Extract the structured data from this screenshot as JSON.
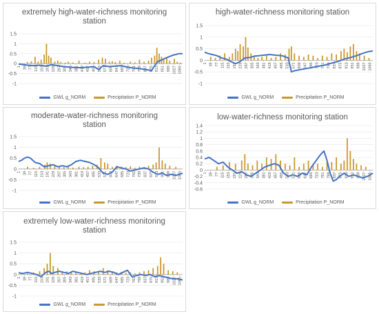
{
  "legend": {
    "gwl": "GWL g_NORM",
    "precip": "Precipitation P_NORM"
  },
  "colors": {
    "gwl": "#4472c4",
    "precip": "#c9982b",
    "grid": "#e6e6e6",
    "axis": "#a6a6a6",
    "text": "#595959"
  },
  "x_tick_labels": [
    "1",
    "39",
    "77",
    "115",
    "153",
    "191",
    "229",
    "267",
    "305",
    "343",
    "381",
    "419",
    "457",
    "495",
    "533",
    "571",
    "609",
    "647",
    "685",
    "723",
    "761",
    "799",
    "837",
    "875",
    "913",
    "951",
    "989",
    "1027",
    "1065"
  ],
  "chart_data": [
    {
      "id": "extremely-high",
      "type": "line+bar",
      "title": "extremely high-water-richness monitoring station",
      "x_range": [
        1,
        1085
      ],
      "ylim": [
        -1,
        1.5
      ],
      "y_ticks": [
        "1.5",
        "1",
        "0.5",
        "0",
        "-0.5",
        "-1"
      ],
      "y_tick_values": [
        1.5,
        1,
        0.5,
        0,
        -0.5,
        -1
      ],
      "grid": true,
      "legend_position": "bottom",
      "series": [
        {
          "name": "GWL g_NORM",
          "kind": "line",
          "x": [
            1,
            30,
            60,
            100,
            140,
            180,
            220,
            260,
            300,
            340,
            380,
            420,
            460,
            500,
            530,
            560,
            600,
            640,
            680,
            720,
            760,
            800,
            840,
            880,
            900,
            920,
            950,
            980,
            1020,
            1060,
            1085
          ],
          "y": [
            -0.02,
            -0.05,
            -0.08,
            -0.1,
            -0.08,
            -0.12,
            -0.06,
            -0.1,
            -0.15,
            -0.18,
            -0.2,
            -0.2,
            -0.18,
            -0.15,
            -0.3,
            -0.1,
            -0.15,
            -0.12,
            -0.1,
            -0.18,
            -0.22,
            -0.25,
            -0.3,
            -0.35,
            -0.1,
            0.1,
            0.2,
            0.3,
            0.42,
            0.5,
            0.5
          ]
        },
        {
          "name": "Precipitation P_NORM",
          "kind": "bar",
          "x": [
            60,
            85,
            110,
            130,
            150,
            170,
            185,
            200,
            215,
            240,
            260,
            280,
            310,
            330,
            360,
            400,
            440,
            470,
            500,
            530,
            555,
            575,
            600,
            620,
            640,
            670,
            700,
            740,
            770,
            800,
            830,
            860,
            880,
            900,
            915,
            930,
            945,
            960,
            980,
            1000,
            1030,
            1050,
            1070
          ],
          "y": [
            0.08,
            0.12,
            0.35,
            0.1,
            0.2,
            0.45,
            1.0,
            0.4,
            0.3,
            0.1,
            0.15,
            0.08,
            0.05,
            0.1,
            0.06,
            0.15,
            0.05,
            0.1,
            0.08,
            0.2,
            0.3,
            0.25,
            0.1,
            0.12,
            0.08,
            0.15,
            0.05,
            0.1,
            0.06,
            0.2,
            0.1,
            0.15,
            0.3,
            0.4,
            0.8,
            0.5,
            0.35,
            0.2,
            0.3,
            0.15,
            0.25,
            0.1,
            0.05
          ]
        }
      ]
    },
    {
      "id": "high",
      "type": "line+bar",
      "title": "high-water-richness monitoring station",
      "x_range": [
        1,
        1085
      ],
      "ylim": [
        -1,
        1.5
      ],
      "y_ticks": [
        "1.5",
        "1",
        "0.5",
        "0",
        "-0.5",
        "-1"
      ],
      "y_tick_values": [
        1.5,
        1,
        0.5,
        0,
        -0.5,
        -1
      ],
      "grid": true,
      "legend_position": "bottom",
      "series": [
        {
          "name": "GWL g_NORM",
          "kind": "line",
          "x": [
            1,
            20,
            50,
            80,
            110,
            140,
            170,
            200,
            230,
            260,
            290,
            320,
            350,
            380,
            420,
            460,
            500,
            540,
            560,
            580,
            620,
            660,
            700,
            740,
            780,
            820,
            860,
            900,
            940,
            980,
            1020,
            1060,
            1085
          ],
          "y": [
            0.35,
            0.3,
            0.25,
            0.2,
            0.1,
            0.05,
            -0.05,
            -0.15,
            -0.05,
            0.1,
            0.12,
            0.18,
            0.2,
            0.22,
            0.25,
            0.22,
            0.2,
            0.1,
            -0.5,
            -0.45,
            -0.4,
            -0.35,
            -0.3,
            -0.25,
            -0.2,
            -0.12,
            -0.05,
            0.05,
            0.12,
            0.2,
            0.3,
            0.38,
            0.4
          ]
        },
        {
          "name": "Precipitation P_NORM",
          "kind": "bar",
          "x": [
            40,
            70,
            100,
            130,
            160,
            180,
            200,
            215,
            230,
            250,
            265,
            280,
            300,
            320,
            345,
            370,
            400,
            430,
            460,
            490,
            520,
            545,
            560,
            580,
            610,
            640,
            670,
            700,
            730,
            760,
            790,
            820,
            850,
            880,
            900,
            920,
            940,
            960,
            980,
            1000,
            1030,
            1060
          ],
          "y": [
            0.15,
            0.1,
            0.2,
            0.3,
            0.15,
            0.3,
            0.5,
            0.4,
            0.7,
            0.6,
            1.0,
            0.55,
            0.3,
            0.2,
            0.1,
            0.15,
            0.2,
            0.1,
            0.15,
            0.3,
            0.25,
            0.5,
            0.6,
            0.3,
            0.2,
            0.15,
            0.25,
            0.2,
            0.1,
            0.2,
            0.15,
            0.3,
            0.25,
            0.4,
            0.5,
            0.35,
            0.6,
            0.7,
            0.4,
            0.3,
            0.2,
            0.1
          ]
        }
      ]
    },
    {
      "id": "moderate",
      "type": "line+bar",
      "title": "moderate-water-richness monitoring station",
      "x_range": [
        1,
        1085
      ],
      "ylim": [
        -1,
        1.5
      ],
      "y_ticks": [
        "1.5",
        "1",
        "0.5",
        "0",
        "-0.5",
        "-1"
      ],
      "y_tick_values": [
        1.5,
        1,
        0.5,
        0,
        -0.5,
        -1
      ],
      "grid": true,
      "legend_position": "bottom",
      "series": [
        {
          "name": "GWL g_NORM",
          "kind": "line",
          "x": [
            1,
            20,
            40,
            60,
            80,
            110,
            140,
            170,
            200,
            230,
            260,
            290,
            320,
            350,
            380,
            410,
            440,
            470,
            500,
            530,
            560,
            590,
            620,
            650,
            680,
            710,
            740,
            770,
            800,
            830,
            860,
            890,
            920,
            950,
            980,
            1010,
            1040,
            1085
          ],
          "y": [
            0.35,
            0.4,
            0.5,
            0.55,
            0.5,
            0.3,
            0.25,
            0.1,
            0.15,
            0.2,
            0.1,
            0.15,
            0.1,
            0.2,
            0.35,
            0.4,
            0.35,
            0.3,
            0.2,
            0.05,
            -0.2,
            -0.25,
            -0.15,
            0.1,
            0.05,
            0.0,
            -0.1,
            -0.05,
            0.0,
            0.05,
            0.0,
            -0.15,
            -0.25,
            -0.2,
            -0.3,
            -0.25,
            -0.3,
            -0.2
          ]
        },
        {
          "name": "Precipitation P_NORM",
          "kind": "bar",
          "x": [
            60,
            100,
            140,
            175,
            190,
            210,
            240,
            270,
            300,
            330,
            360,
            400,
            430,
            460,
            490,
            520,
            545,
            570,
            590,
            620,
            650,
            680,
            710,
            740,
            770,
            800,
            830,
            860,
            890,
            910,
            930,
            950,
            970,
            1000,
            1040
          ],
          "y": [
            0.1,
            0.05,
            0.1,
            0.2,
            0.3,
            0.25,
            0.15,
            0.1,
            0.08,
            0.1,
            0.06,
            0.1,
            0.08,
            0.1,
            0.15,
            0.2,
            0.5,
            0.3,
            0.25,
            0.1,
            0.15,
            0.1,
            0.08,
            0.12,
            0.05,
            0.1,
            0.08,
            0.15,
            0.2,
            0.3,
            1.0,
            0.4,
            0.25,
            0.15,
            0.1
          ]
        }
      ]
    },
    {
      "id": "low",
      "type": "line+bar",
      "title": "low-water-richness monitoring station",
      "x_range": [
        1,
        1085
      ],
      "ylim": [
        -0.6,
        1.4
      ],
      "y_ticks": [
        "1.4",
        "1.2",
        "1",
        "0.8",
        "0.6",
        "0.4",
        "0.2",
        "0",
        "-0.2",
        "-0.4",
        "-0.6"
      ],
      "y_tick_values": [
        1.4,
        1.2,
        1,
        0.8,
        0.6,
        0.4,
        0.2,
        0,
        -0.2,
        -0.4,
        -0.6
      ],
      "grid": true,
      "legend_position": "bottom",
      "series": [
        {
          "name": "GWL g_NORM",
          "kind": "line",
          "x": [
            1,
            30,
            60,
            90,
            120,
            150,
            180,
            210,
            240,
            270,
            300,
            330,
            360,
            390,
            420,
            450,
            480,
            510,
            540,
            570,
            600,
            630,
            660,
            690,
            720,
            750,
            770,
            790,
            810,
            830,
            850,
            870,
            900,
            930,
            960,
            990,
            1020,
            1050,
            1085
          ],
          "y": [
            0.35,
            0.4,
            0.3,
            0.2,
            0.25,
            0.1,
            0.0,
            -0.1,
            -0.05,
            -0.15,
            -0.2,
            -0.1,
            0.0,
            0.1,
            0.15,
            0.2,
            0.15,
            -0.1,
            -0.2,
            -0.15,
            -0.2,
            -0.1,
            -0.15,
            0.1,
            0.3,
            0.5,
            0.6,
            0.3,
            -0.1,
            -0.35,
            -0.3,
            -0.2,
            -0.1,
            -0.2,
            -0.15,
            -0.2,
            -0.25,
            -0.2,
            -0.1
          ]
        },
        {
          "name": "Precipitation P_NORM",
          "kind": "bar",
          "x": [
            80,
            120,
            160,
            200,
            240,
            260,
            280,
            310,
            340,
            370,
            400,
            430,
            460,
            490,
            520,
            550,
            580,
            610,
            640,
            670,
            700,
            730,
            760,
            790,
            820,
            850,
            880,
            900,
            920,
            940,
            960,
            980,
            1010,
            1040
          ],
          "y": [
            0.1,
            0.15,
            0.25,
            0.2,
            0.3,
            0.5,
            0.2,
            0.15,
            0.3,
            0.2,
            0.4,
            0.35,
            0.5,
            0.3,
            0.2,
            0.15,
            0.4,
            0.1,
            0.2,
            0.3,
            0.15,
            0.2,
            0.1,
            0.3,
            0.25,
            0.4,
            0.2,
            0.3,
            1.0,
            0.6,
            0.35,
            0.2,
            0.15,
            0.1
          ]
        }
      ]
    },
    {
      "id": "extremely-low",
      "type": "line+bar",
      "title": "extremely low-water-richness monitoring station",
      "x_range": [
        1,
        1085
      ],
      "ylim": [
        -1,
        1.5
      ],
      "y_ticks": [
        "1.5",
        "1",
        "0.5",
        "0",
        "-0.5",
        "-1"
      ],
      "y_tick_values": [
        1.5,
        1,
        0.5,
        0,
        -0.5,
        -1
      ],
      "grid": true,
      "legend_position": "bottom",
      "series": [
        {
          "name": "GWL g_NORM",
          "kind": "line",
          "x": [
            1,
            30,
            60,
            90,
            120,
            150,
            180,
            200,
            220,
            240,
            270,
            300,
            330,
            360,
            390,
            420,
            450,
            480,
            510,
            540,
            570,
            600,
            630,
            660,
            690,
            720,
            750,
            780,
            810,
            840,
            870,
            900,
            930,
            960,
            990,
            1020,
            1050,
            1085
          ],
          "y": [
            0.08,
            0.05,
            0.1,
            0.05,
            0.0,
            -0.1,
            0.1,
            0.15,
            0.05,
            0.1,
            0.15,
            0.1,
            0.05,
            0.15,
            0.1,
            0.05,
            0.0,
            0.05,
            0.1,
            0.15,
            0.1,
            0.15,
            0.1,
            0.0,
            0.1,
            0.2,
            -0.1,
            -0.05,
            0.0,
            -0.05,
            0.0,
            -0.1,
            -0.05,
            -0.1,
            -0.15,
            -0.2,
            -0.2,
            -0.25
          ]
        },
        {
          "name": "Precipitation P_NORM",
          "kind": "bar",
          "x": [
            60,
            100,
            140,
            170,
            190,
            210,
            230,
            260,
            290,
            320,
            350,
            380,
            410,
            440,
            470,
            500,
            530,
            560,
            590,
            620,
            650,
            680,
            710,
            740,
            770,
            800,
            830,
            860,
            890,
            920,
            940,
            960,
            990,
            1020,
            1050
          ],
          "y": [
            0.05,
            0.1,
            0.15,
            0.3,
            0.5,
            1.0,
            0.4,
            0.3,
            0.1,
            0.15,
            0.08,
            0.1,
            0.05,
            0.1,
            0.2,
            0.15,
            0.1,
            0.3,
            0.2,
            0.15,
            0.1,
            0.12,
            0.08,
            0.1,
            0.05,
            0.1,
            0.15,
            0.2,
            0.3,
            0.4,
            0.8,
            0.5,
            0.2,
            0.15,
            0.1
          ]
        }
      ]
    }
  ]
}
